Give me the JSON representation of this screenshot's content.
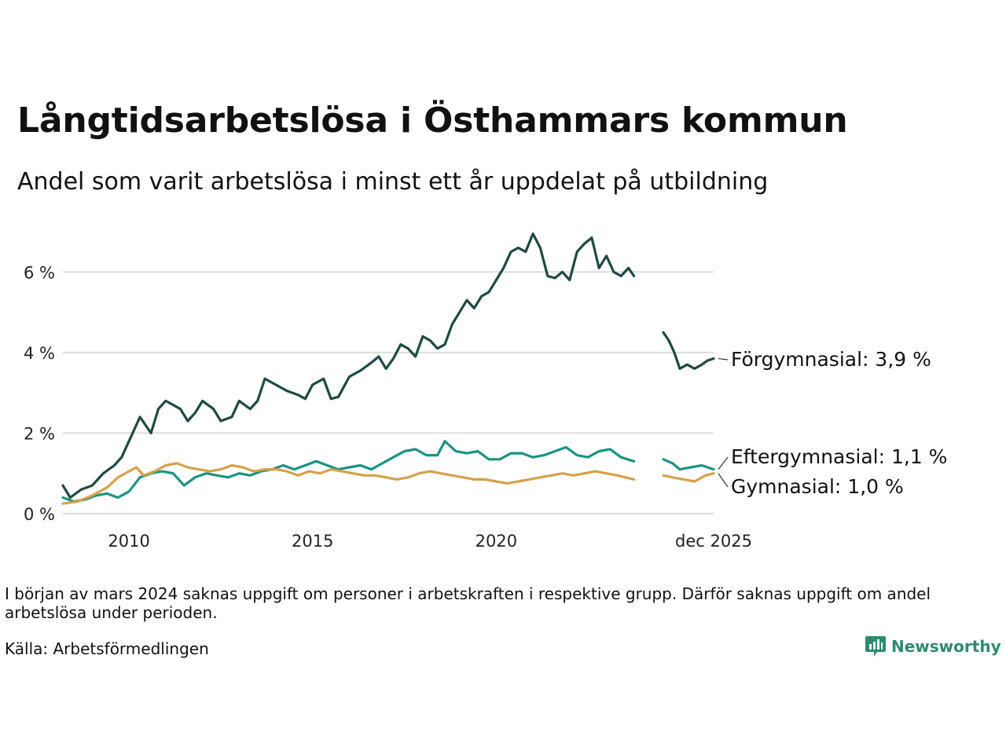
{
  "header": {
    "title": "Långtidsarbetslösa i Östhammars kommun",
    "subtitle": "Andel som varit arbetslösa i minst ett år uppdelat på utbildning"
  },
  "footer": {
    "note": "I början av mars 2024 saknas uppgift om personer i arbetskraften i respektive grupp. Därför saknas uppgift om andel arbetslösa under perioden.",
    "source": "Källa: Arbetsförmedlingen",
    "brand": "Newsworthy"
  },
  "colors": {
    "forgymnasial": "#1f4a43",
    "eftergymnasial": "#1a9481",
    "gymnasial": "#d4a24c",
    "grid": "#dddddd"
  },
  "chart_data": {
    "type": "line",
    "title": "Långtidsarbetslösa i Östhammars kommun",
    "xlabel": "",
    "ylabel": "",
    "xlim": [
      2008.2,
      2025.92
    ],
    "ylim": [
      0,
      7
    ],
    "y_ticks": [
      0,
      2,
      4,
      6
    ],
    "y_tick_labels": [
      "0 %",
      "2 %",
      "4 %",
      "6 %"
    ],
    "x_ticks": [
      2010,
      2015,
      2020,
      2025.92
    ],
    "x_tick_labels": [
      "2010",
      "2015",
      "2020",
      "dec 2025"
    ],
    "gap": [
      2024.0,
      2024.55
    ],
    "series": [
      {
        "name": "Förgymnasial",
        "end_label": "Förgymnasial: 3,9 %",
        "color_key": "forgymnasial",
        "points": [
          [
            2008.2,
            0.7
          ],
          [
            2008.4,
            0.4
          ],
          [
            2008.7,
            0.6
          ],
          [
            2009.0,
            0.7
          ],
          [
            2009.3,
            1.0
          ],
          [
            2009.6,
            1.2
          ],
          [
            2009.8,
            1.4
          ],
          [
            2010.0,
            1.8
          ],
          [
            2010.3,
            2.4
          ],
          [
            2010.6,
            2.0
          ],
          [
            2010.8,
            2.6
          ],
          [
            2011.0,
            2.8
          ],
          [
            2011.2,
            2.7
          ],
          [
            2011.4,
            2.6
          ],
          [
            2011.6,
            2.3
          ],
          [
            2011.8,
            2.5
          ],
          [
            2012.0,
            2.8
          ],
          [
            2012.3,
            2.6
          ],
          [
            2012.5,
            2.3
          ],
          [
            2012.8,
            2.4
          ],
          [
            2013.0,
            2.8
          ],
          [
            2013.3,
            2.6
          ],
          [
            2013.5,
            2.8
          ],
          [
            2013.7,
            3.35
          ],
          [
            2014.0,
            3.2
          ],
          [
            2014.3,
            3.05
          ],
          [
            2014.6,
            2.95
          ],
          [
            2014.8,
            2.85
          ],
          [
            2015.0,
            3.2
          ],
          [
            2015.3,
            3.35
          ],
          [
            2015.5,
            2.85
          ],
          [
            2015.7,
            2.9
          ],
          [
            2016.0,
            3.4
          ],
          [
            2016.3,
            3.55
          ],
          [
            2016.6,
            3.75
          ],
          [
            2016.8,
            3.9
          ],
          [
            2017.0,
            3.6
          ],
          [
            2017.2,
            3.85
          ],
          [
            2017.4,
            4.2
          ],
          [
            2017.6,
            4.1
          ],
          [
            2017.8,
            3.9
          ],
          [
            2018.0,
            4.4
          ],
          [
            2018.2,
            4.3
          ],
          [
            2018.4,
            4.1
          ],
          [
            2018.6,
            4.2
          ],
          [
            2018.8,
            4.7
          ],
          [
            2019.0,
            5.0
          ],
          [
            2019.2,
            5.3
          ],
          [
            2019.4,
            5.1
          ],
          [
            2019.6,
            5.4
          ],
          [
            2019.8,
            5.5
          ],
          [
            2020.0,
            5.8
          ],
          [
            2020.2,
            6.1
          ],
          [
            2020.4,
            6.5
          ],
          [
            2020.6,
            6.6
          ],
          [
            2020.8,
            6.5
          ],
          [
            2021.0,
            6.95
          ],
          [
            2021.2,
            6.6
          ],
          [
            2021.4,
            5.9
          ],
          [
            2021.6,
            5.85
          ],
          [
            2021.8,
            6.0
          ],
          [
            2022.0,
            5.8
          ],
          [
            2022.2,
            6.5
          ],
          [
            2022.4,
            6.7
          ],
          [
            2022.6,
            6.85
          ],
          [
            2022.8,
            6.1
          ],
          [
            2023.0,
            6.4
          ],
          [
            2023.2,
            6.0
          ],
          [
            2023.4,
            5.9
          ],
          [
            2023.6,
            6.1
          ],
          [
            2023.75,
            5.9
          ],
          [
            2024.55,
            4.5
          ],
          [
            2024.7,
            4.3
          ],
          [
            2024.85,
            4.0
          ],
          [
            2025.0,
            3.6
          ],
          [
            2025.2,
            3.7
          ],
          [
            2025.4,
            3.6
          ],
          [
            2025.6,
            3.7
          ],
          [
            2025.75,
            3.8
          ],
          [
            2025.92,
            3.85
          ]
        ]
      },
      {
        "name": "Eftergymnasial",
        "end_label": "Eftergymnasial: 1,1 %",
        "color_key": "eftergymnasial",
        "points": [
          [
            2008.2,
            0.4
          ],
          [
            2008.5,
            0.3
          ],
          [
            2008.8,
            0.35
          ],
          [
            2009.1,
            0.45
          ],
          [
            2009.4,
            0.5
          ],
          [
            2009.7,
            0.4
          ],
          [
            2010.0,
            0.55
          ],
          [
            2010.3,
            0.9
          ],
          [
            2010.6,
            1.0
          ],
          [
            2010.9,
            1.05
          ],
          [
            2011.2,
            1.0
          ],
          [
            2011.5,
            0.7
          ],
          [
            2011.8,
            0.9
          ],
          [
            2012.1,
            1.0
          ],
          [
            2012.4,
            0.95
          ],
          [
            2012.7,
            0.9
          ],
          [
            2013.0,
            1.0
          ],
          [
            2013.3,
            0.95
          ],
          [
            2013.6,
            1.05
          ],
          [
            2013.9,
            1.1
          ],
          [
            2014.2,
            1.2
          ],
          [
            2014.5,
            1.1
          ],
          [
            2014.8,
            1.2
          ],
          [
            2015.1,
            1.3
          ],
          [
            2015.4,
            1.2
          ],
          [
            2015.7,
            1.1
          ],
          [
            2016.0,
            1.15
          ],
          [
            2016.3,
            1.2
          ],
          [
            2016.6,
            1.1
          ],
          [
            2016.9,
            1.25
          ],
          [
            2017.2,
            1.4
          ],
          [
            2017.5,
            1.55
          ],
          [
            2017.8,
            1.6
          ],
          [
            2018.1,
            1.45
          ],
          [
            2018.4,
            1.45
          ],
          [
            2018.6,
            1.8
          ],
          [
            2018.9,
            1.55
          ],
          [
            2019.2,
            1.5
          ],
          [
            2019.5,
            1.55
          ],
          [
            2019.8,
            1.35
          ],
          [
            2020.1,
            1.35
          ],
          [
            2020.4,
            1.5
          ],
          [
            2020.7,
            1.5
          ],
          [
            2021.0,
            1.4
          ],
          [
            2021.3,
            1.45
          ],
          [
            2021.6,
            1.55
          ],
          [
            2021.9,
            1.65
          ],
          [
            2022.2,
            1.45
          ],
          [
            2022.5,
            1.4
          ],
          [
            2022.8,
            1.55
          ],
          [
            2023.1,
            1.6
          ],
          [
            2023.4,
            1.4
          ],
          [
            2023.75,
            1.3
          ],
          [
            2024.55,
            1.35
          ],
          [
            2024.8,
            1.25
          ],
          [
            2025.0,
            1.1
          ],
          [
            2025.3,
            1.15
          ],
          [
            2025.6,
            1.2
          ],
          [
            2025.92,
            1.1
          ]
        ]
      },
      {
        "name": "Gymnasial",
        "end_label": "Gymnasial: 1,0 %",
        "color_key": "gymnasial",
        "points": [
          [
            2008.2,
            0.25
          ],
          [
            2008.6,
            0.3
          ],
          [
            2009.0,
            0.45
          ],
          [
            2009.4,
            0.65
          ],
          [
            2009.7,
            0.9
          ],
          [
            2010.0,
            1.05
          ],
          [
            2010.2,
            1.15
          ],
          [
            2010.4,
            0.95
          ],
          [
            2010.7,
            1.05
          ],
          [
            2011.0,
            1.2
          ],
          [
            2011.3,
            1.25
          ],
          [
            2011.6,
            1.15
          ],
          [
            2011.9,
            1.1
          ],
          [
            2012.2,
            1.05
          ],
          [
            2012.5,
            1.1
          ],
          [
            2012.8,
            1.2
          ],
          [
            2013.1,
            1.15
          ],
          [
            2013.4,
            1.05
          ],
          [
            2013.7,
            1.1
          ],
          [
            2014.0,
            1.1
          ],
          [
            2014.3,
            1.05
          ],
          [
            2014.6,
            0.95
          ],
          [
            2014.9,
            1.05
          ],
          [
            2015.2,
            1.0
          ],
          [
            2015.5,
            1.1
          ],
          [
            2015.8,
            1.05
          ],
          [
            2016.1,
            1.0
          ],
          [
            2016.4,
            0.95
          ],
          [
            2016.7,
            0.95
          ],
          [
            2017.0,
            0.9
          ],
          [
            2017.3,
            0.85
          ],
          [
            2017.6,
            0.9
          ],
          [
            2017.9,
            1.0
          ],
          [
            2018.2,
            1.05
          ],
          [
            2018.5,
            1.0
          ],
          [
            2018.8,
            0.95
          ],
          [
            2019.1,
            0.9
          ],
          [
            2019.4,
            0.85
          ],
          [
            2019.7,
            0.85
          ],
          [
            2020.0,
            0.8
          ],
          [
            2020.3,
            0.75
          ],
          [
            2020.6,
            0.8
          ],
          [
            2020.9,
            0.85
          ],
          [
            2021.2,
            0.9
          ],
          [
            2021.5,
            0.95
          ],
          [
            2021.8,
            1.0
          ],
          [
            2022.1,
            0.95
          ],
          [
            2022.4,
            1.0
          ],
          [
            2022.7,
            1.05
          ],
          [
            2023.0,
            1.0
          ],
          [
            2023.3,
            0.95
          ],
          [
            2023.75,
            0.85
          ],
          [
            2024.55,
            0.95
          ],
          [
            2024.8,
            0.9
          ],
          [
            2025.1,
            0.85
          ],
          [
            2025.4,
            0.8
          ],
          [
            2025.7,
            0.95
          ],
          [
            2025.92,
            1.0
          ]
        ]
      }
    ]
  }
}
